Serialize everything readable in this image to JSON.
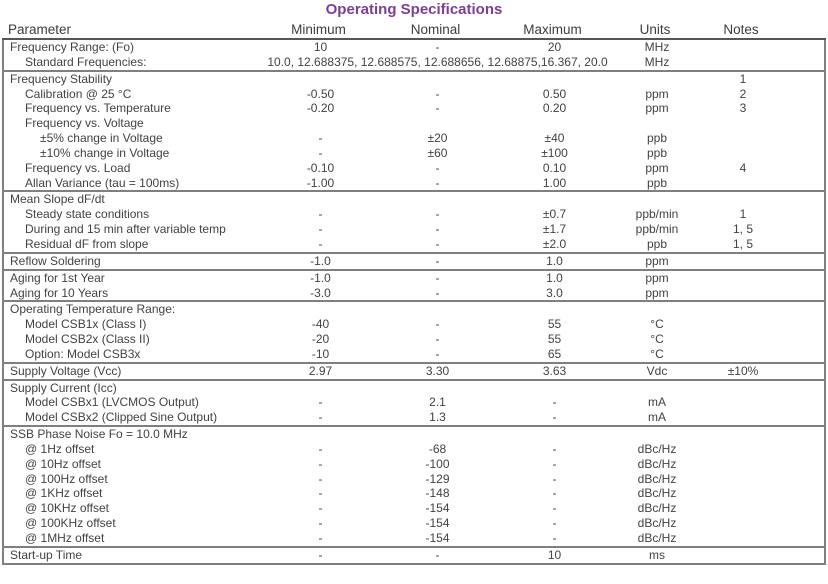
{
  "title": "Operating Specifications",
  "accent_color": "#7d3e97",
  "line_color": "#7f7f7f",
  "text_color": "#424242",
  "columns": [
    "Parameter",
    "Minimum",
    "Nominal",
    "Maximum",
    "Units",
    "Notes"
  ],
  "sections": [
    {
      "rows": [
        {
          "label": "Frequency Range: (Fo)",
          "indent": 0,
          "min": "10",
          "nom": "-",
          "max": "20",
          "units": "MHz",
          "notes": ""
        },
        {
          "label": "Standard Frequencies:",
          "indent": 1,
          "span": "10.0, 12.688375, 12.688575, 12.688656, 12.68875,16.367, 20.0",
          "units": "MHz",
          "notes": ""
        }
      ]
    },
    {
      "rows": [
        {
          "label": "Frequency Stability",
          "indent": 0,
          "min": "",
          "nom": "",
          "max": "",
          "units": "",
          "notes": "1"
        },
        {
          "label": "Calibration @ 25 °C",
          "indent": 1,
          "min": "-0.50",
          "nom": "-",
          "max": "0.50",
          "units": "ppm",
          "notes": "2"
        },
        {
          "label": "Frequency vs. Temperature",
          "indent": 1,
          "min": "-0.20",
          "nom": "-",
          "max": "0.20",
          "units": "ppm",
          "notes": "3"
        },
        {
          "label": "Frequency vs. Voltage",
          "indent": 1,
          "min": "",
          "nom": "",
          "max": "",
          "units": "",
          "notes": ""
        },
        {
          "label": "±5% change in Voltage",
          "indent": 2,
          "min": "-",
          "nom": "±20",
          "max": "±40",
          "units": "ppb",
          "notes": ""
        },
        {
          "label": "±10% change in Voltage",
          "indent": 2,
          "min": "-",
          "nom": "±60",
          "max": "±100",
          "units": "ppb",
          "notes": ""
        },
        {
          "label": "Frequency vs. Load",
          "indent": 1,
          "min": "-0.10",
          "nom": "-",
          "max": "0.10",
          "units": "ppm",
          "notes": "4"
        },
        {
          "label": "Allan Variance (tau = 100ms)",
          "indent": 1,
          "min": "-1.00",
          "nom": "-",
          "max": "1.00",
          "units": "ppb",
          "notes": ""
        }
      ]
    },
    {
      "rows": [
        {
          "label": "Mean Slope dF/dt",
          "indent": 0,
          "min": "",
          "nom": "",
          "max": "",
          "units": "",
          "notes": ""
        },
        {
          "label": "Steady state conditions",
          "indent": 1,
          "min": "-",
          "nom": "-",
          "max": "±0.7",
          "units": "ppb/min",
          "notes": "1"
        },
        {
          "label": "During and 15 min after variable temp",
          "indent": 1,
          "min": "-",
          "nom": "-",
          "max": "±1.7",
          "units": "ppb/min",
          "notes": "1, 5"
        },
        {
          "label": "Residual dF from slope",
          "indent": 1,
          "min": "-",
          "nom": "-",
          "max": "±2.0",
          "units": "ppb",
          "notes": "1, 5"
        }
      ]
    },
    {
      "rows": [
        {
          "label": "Reflow Soldering",
          "indent": 0,
          "min": "-1.0",
          "nom": "-",
          "max": "1.0",
          "units": "ppm",
          "notes": ""
        }
      ]
    },
    {
      "rows": [
        {
          "label": "Aging for 1st Year",
          "indent": 0,
          "min": "-1.0",
          "nom": "-",
          "max": "1.0",
          "units": "ppm",
          "notes": ""
        },
        {
          "label": "Aging for 10 Years",
          "indent": 0,
          "min": "-3.0",
          "nom": "-",
          "max": "3.0",
          "units": "ppm",
          "notes": ""
        }
      ]
    },
    {
      "rows": [
        {
          "label": "Operating Temperature Range:",
          "indent": 0,
          "min": "",
          "nom": "",
          "max": "",
          "units": "",
          "notes": ""
        },
        {
          "label": "Model CSB1x (Class I)",
          "indent": 1,
          "min": "-40",
          "nom": "-",
          "max": "55",
          "units": "°C",
          "notes": ""
        },
        {
          "label": "Model CSB2x (Class II)",
          "indent": 1,
          "min": "-20",
          "nom": "-",
          "max": "55",
          "units": "°C",
          "notes": ""
        },
        {
          "label": "Option: Model CSB3x",
          "indent": 1,
          "min": "-10",
          "nom": "-",
          "max": "65",
          "units": "°C",
          "notes": ""
        }
      ]
    },
    {
      "rows": [
        {
          "label": "Supply Voltage (Vcc)",
          "indent": 0,
          "min": "2.97",
          "nom": "3.30",
          "max": "3.63",
          "units": "Vdc",
          "notes": "±10%"
        }
      ]
    },
    {
      "rows": [
        {
          "label": "Supply Current (Icc)",
          "indent": 0,
          "min": "",
          "nom": "",
          "max": "",
          "units": "",
          "notes": ""
        },
        {
          "label": "Model CSBx1 (LVCMOS Output)",
          "indent": 1,
          "min": "-",
          "nom": "2.1",
          "max": "-",
          "units": "mA",
          "notes": ""
        },
        {
          "label": "Model CSBx2 (Clipped Sine Output)",
          "indent": 1,
          "min": "-",
          "nom": "1.3",
          "max": "-",
          "units": "mA",
          "notes": ""
        }
      ]
    },
    {
      "rows": [
        {
          "label": "SSB Phase Noise Fo = 10.0 MHz",
          "indent": 0,
          "min": "",
          "nom": "",
          "max": "",
          "units": "",
          "notes": ""
        },
        {
          "label": "@ 1Hz offset",
          "indent": 1,
          "min": "-",
          "nom": "-68",
          "max": "-",
          "units": "dBc/Hz",
          "notes": ""
        },
        {
          "label": "@ 10Hz offset",
          "indent": 1,
          "min": "-",
          "nom": "-100",
          "max": "-",
          "units": "dBc/Hz",
          "notes": ""
        },
        {
          "label": "@ 100Hz offset",
          "indent": 1,
          "min": "-",
          "nom": "-129",
          "max": "-",
          "units": "dBc/Hz",
          "notes": ""
        },
        {
          "label": "@ 1KHz offset",
          "indent": 1,
          "min": "-",
          "nom": "-148",
          "max": "-",
          "units": "dBc/Hz",
          "notes": ""
        },
        {
          "label": "@ 10KHz offset",
          "indent": 1,
          "min": "-",
          "nom": "-154",
          "max": "-",
          "units": "dBc/Hz",
          "notes": ""
        },
        {
          "label": "@ 100KHz offset",
          "indent": 1,
          "min": "-",
          "nom": "-154",
          "max": "-",
          "units": "dBc/Hz",
          "notes": ""
        },
        {
          "label": "@ 1MHz offset",
          "indent": 1,
          "min": "-",
          "nom": "-154",
          "max": "-",
          "units": "dBc/Hz",
          "notes": ""
        }
      ]
    },
    {
      "rows": [
        {
          "label": "Start-up Time",
          "indent": 0,
          "min": "-",
          "nom": "-",
          "max": "10",
          "units": "ms",
          "notes": ""
        }
      ]
    }
  ]
}
